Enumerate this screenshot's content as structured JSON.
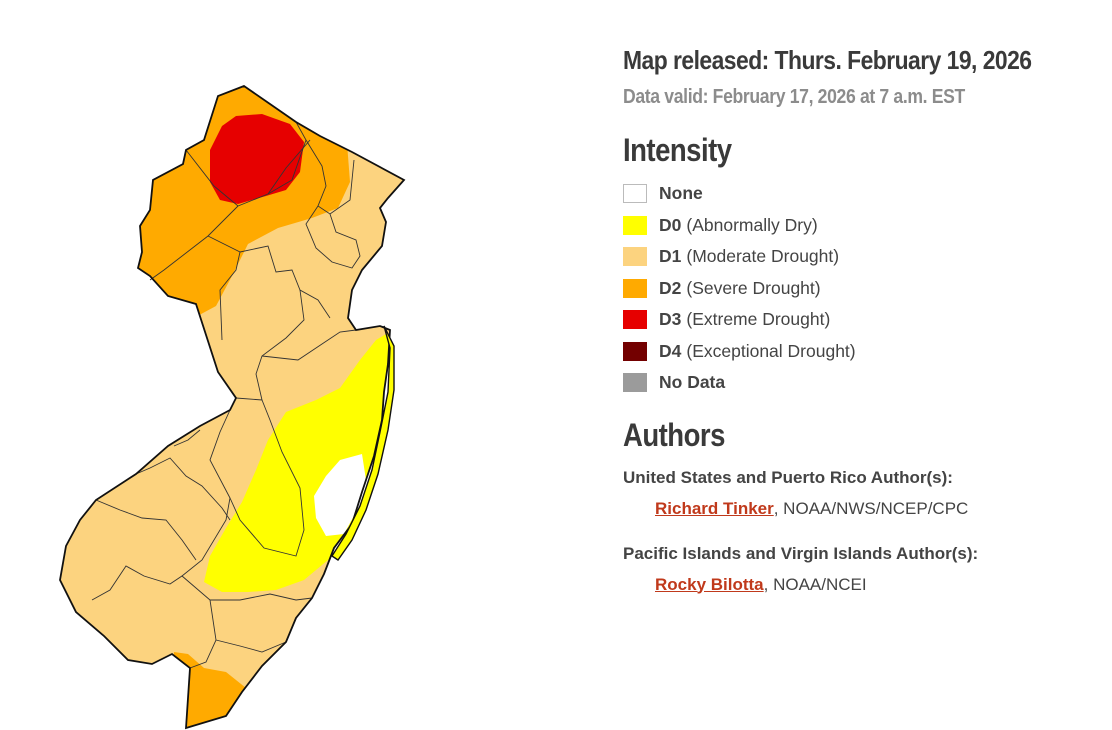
{
  "release": {
    "map_released": "Map released: Thurs. February 19, 2026",
    "data_valid": "Data valid: February 17, 2026 at 7 a.m. EST"
  },
  "intensity": {
    "title": "Intensity",
    "items": [
      {
        "code": "None",
        "desc": "",
        "color": "#ffffff"
      },
      {
        "code": "D0",
        "desc": "(Abnormally Dry)",
        "color": "#ffff00"
      },
      {
        "code": "D1",
        "desc": "(Moderate Drought)",
        "color": "#fcd37f"
      },
      {
        "code": "D2",
        "desc": "(Severe Drought)",
        "color": "#ffaa00"
      },
      {
        "code": "D3",
        "desc": "(Extreme Drought)",
        "color": "#e60000"
      },
      {
        "code": "D4",
        "desc": "(Exceptional Drought)",
        "color": "#730000"
      },
      {
        "code": "No Data",
        "desc": "",
        "color": "#9b9b9b"
      }
    ]
  },
  "authors": {
    "title": "Authors",
    "groups": [
      {
        "region": "United States and Puerto Rico Author(s):",
        "name": "Richard Tinker",
        "affiliation": ", NOAA/NWS/NCEP/CPC"
      },
      {
        "region": "Pacific Islands and Virgin Islands Author(s):",
        "name": "Rocky Bilotta",
        "affiliation": ", NOAA/NCEI"
      }
    ]
  },
  "map": {
    "region": "New Jersey",
    "categories_shown": [
      "None",
      "D0",
      "D1",
      "D2",
      "D3"
    ]
  }
}
